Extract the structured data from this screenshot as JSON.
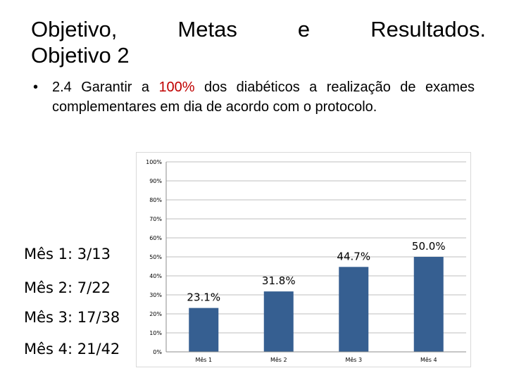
{
  "title": {
    "line1": [
      "Objetivo,",
      "Metas",
      "e",
      "Resultados."
    ],
    "line2": "Objetivo 2"
  },
  "bullet": {
    "symbol": "•",
    "before": "2.4 Garantir a ",
    "highlight": "100%",
    "after": " dos diabéticos a realização de exames complementares em dia de acordo com o protocolo.",
    "highlight_color": "#c00000"
  },
  "monthly_counts": [
    "Mês 1: 3/13",
    "Mês 2: 7/22",
    "Mês 3: 17/38",
    "Mês 4: 21/42"
  ],
  "chart_data": {
    "type": "bar",
    "categories": [
      "Mês 1",
      "Mês 2",
      "Mês 3",
      "Mês 4"
    ],
    "values": [
      23.1,
      31.8,
      44.7,
      50.0
    ],
    "data_labels": [
      "23.1%",
      "31.8%",
      "44.7%",
      "50.0%"
    ],
    "ylim": [
      0,
      100
    ],
    "yticks": [
      "0%",
      "10%",
      "20%",
      "30%",
      "40%",
      "50%",
      "60%",
      "70%",
      "80%",
      "90%",
      "100%"
    ],
    "grid": true,
    "bar_color": "#365f91",
    "grid_color": "#bfbfbf"
  }
}
